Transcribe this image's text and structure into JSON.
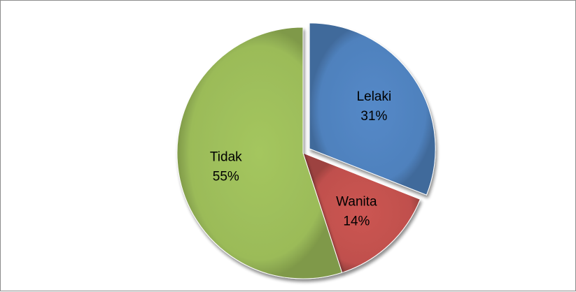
{
  "chart_data": {
    "type": "pie",
    "title": "",
    "legend": "none",
    "exploded": "Lelaki",
    "slices": [
      {
        "name": "Lelaki",
        "percent_label": "31%",
        "value": 31,
        "color": "#4f81bd"
      },
      {
        "name": "Wanita",
        "percent_label": "14%",
        "value": 14,
        "color": "#c0504d"
      },
      {
        "name": "Tidak",
        "percent_label": "55%",
        "value": 55,
        "color": "#9bbb59"
      }
    ]
  }
}
